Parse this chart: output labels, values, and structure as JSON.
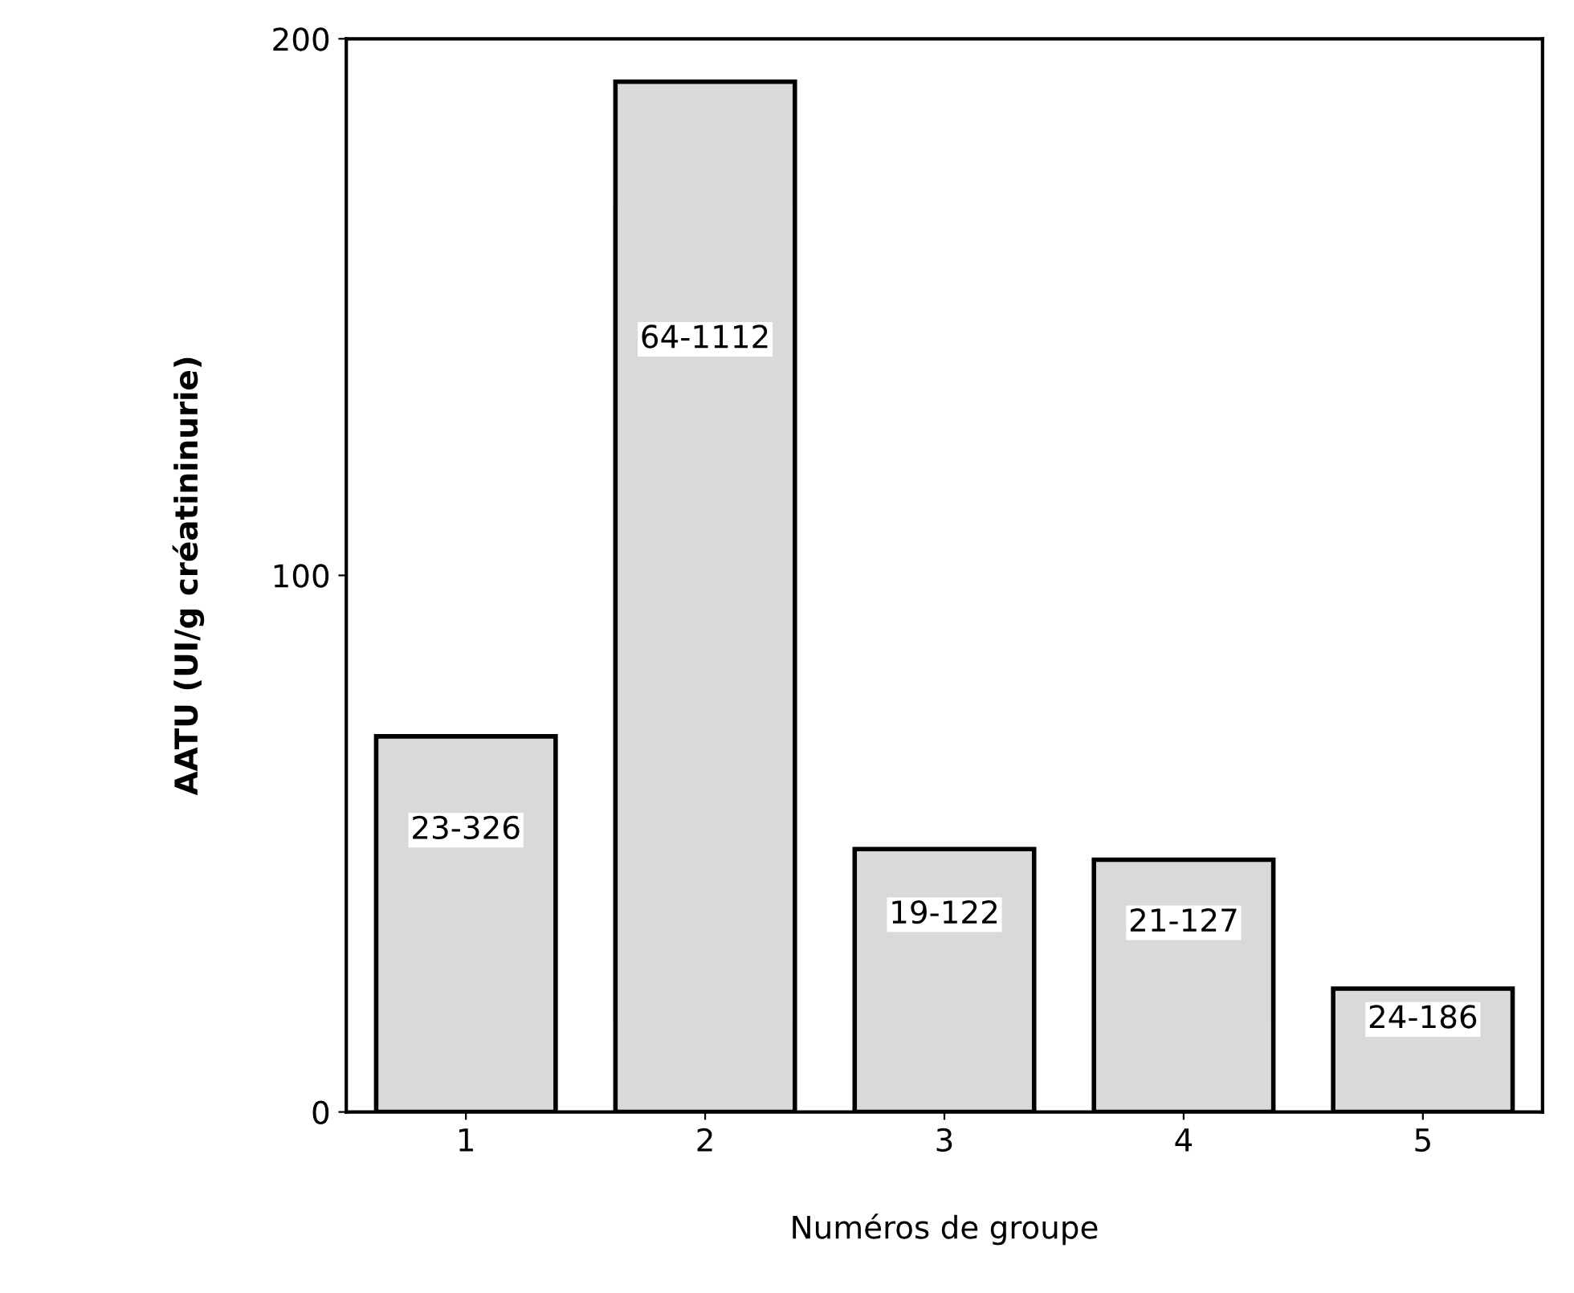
{
  "chart_data": {
    "type": "bar",
    "xlabel": "Numéros de groupe",
    "ylabel": "AATU (UI/g créatininurie)",
    "categories": [
      "1",
      "2",
      "3",
      "4",
      "5"
    ],
    "values": [
      70,
      192,
      49,
      47,
      23
    ],
    "color": "#d9d9d9",
    "value_labels": [
      "23-326",
      "64-1112",
      "19-122",
      "21-127",
      "24-186"
    ],
    "ylim": [
      0,
      200
    ],
    "yticks": [
      0,
      100,
      200
    ],
    "grid": false
  }
}
